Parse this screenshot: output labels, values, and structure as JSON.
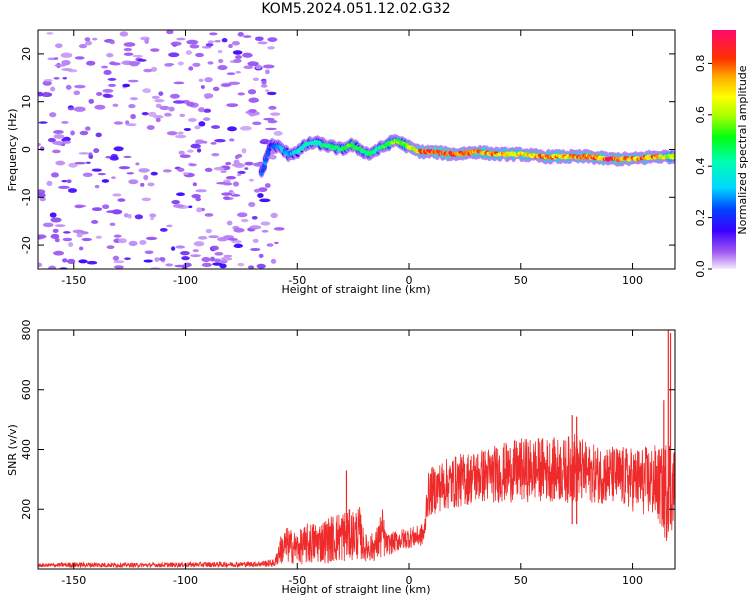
{
  "title": "KOM5.2024.051.12.02.G32",
  "chart_data": [
    {
      "type": "heatmap",
      "xlabel": "Height of straight line (km)",
      "ylabel": "Frequency (Hz)",
      "xlim": [
        -166,
        119
      ],
      "ylim": [
        -25,
        25
      ],
      "xticks": [
        -150,
        -100,
        -50,
        0,
        50,
        100
      ],
      "yticks": [
        -20,
        -10,
        0,
        10,
        20
      ],
      "colorbar": {
        "label": "Normalized spectral amplitude",
        "ticks": [
          0.0,
          0.2,
          0.4,
          0.6,
          0.8
        ],
        "range": [
          0.0,
          0.93
        ]
      },
      "ridge": {
        "x": [
          -66,
          -62,
          -58,
          -54,
          -50,
          -46,
          -42,
          -38,
          -34,
          -30,
          -26,
          -22,
          -18,
          -14,
          -10,
          -6,
          -2,
          2,
          6,
          10,
          20,
          30,
          40,
          50,
          60,
          70,
          80,
          90,
          100,
          110,
          119
        ],
        "freq": [
          -5,
          1,
          0.5,
          -1,
          -0.5,
          1,
          1.5,
          1,
          0.5,
          0,
          1,
          0,
          -1,
          0,
          1,
          2,
          1,
          0,
          -0.5,
          -0.5,
          -1,
          -0.5,
          -1,
          -1,
          -1.5,
          -1.5,
          -1.5,
          -2,
          -2,
          -1.5,
          -1.5
        ],
        "amp": [
          0.3,
          0.2,
          0.35,
          0.3,
          0.35,
          0.45,
          0.4,
          0.45,
          0.5,
          0.45,
          0.55,
          0.5,
          0.45,
          0.5,
          0.55,
          0.6,
          0.55,
          0.7,
          0.8,
          0.9,
          0.9,
          0.8,
          0.75,
          0.7,
          0.8,
          0.75,
          0.8,
          0.85,
          0.8,
          0.75,
          0.6
        ]
      },
      "noise_region_x": [
        -166,
        -64
      ]
    },
    {
      "type": "line",
      "xlabel": "Height of straight line (km)",
      "ylabel": "SNR (v/v)",
      "xlim": [
        -166,
        119
      ],
      "ylim": [
        0,
        800
      ],
      "xticks": [
        -150,
        -100,
        -50,
        0,
        50,
        100
      ],
      "yticks": [
        200,
        400,
        600,
        800
      ],
      "color": "#ee2a2a",
      "series": [
        {
          "x": [
            -166,
            -150,
            -120,
            -90,
            -70,
            -60,
            -58,
            -55,
            -50,
            -45,
            -40,
            -35,
            -30,
            -25,
            -22,
            -20,
            -15,
            -12,
            -10,
            -5,
            0,
            5,
            7,
            8,
            10,
            15,
            20,
            25,
            30,
            40,
            50,
            60,
            70,
            74,
            80,
            90,
            100,
            110,
            113,
            115,
            116,
            117,
            119
          ],
          "mean": [
            12,
            14,
            13,
            15,
            16,
            20,
            60,
            80,
            70,
            85,
            90,
            100,
            110,
            115,
            120,
            70,
            75,
            120,
            80,
            95,
            105,
            110,
            120,
            240,
            260,
            280,
            290,
            300,
            310,
            320,
            330,
            335,
            330,
            340,
            320,
            315,
            300,
            290,
            270,
            260,
            300,
            280,
            270
          ],
          "amp": [
            6,
            10,
            8,
            10,
            10,
            15,
            50,
            70,
            60,
            80,
            80,
            90,
            100,
            95,
            100,
            50,
            55,
            100,
            40,
            40,
            40,
            40,
            50,
            80,
            90,
            95,
            100,
            100,
            100,
            110,
            120,
            120,
            120,
            140,
            110,
            110,
            120,
            140,
            150,
            200,
            200,
            180,
            160
          ]
        }
      ],
      "spikes": [
        {
          "x": -28,
          "y": 330
        },
        {
          "x": 73,
          "y": 515
        },
        {
          "x": 75,
          "y": 510
        },
        {
          "x": 114,
          "y": 565
        },
        {
          "x": 116,
          "y": 800
        },
        {
          "x": 117,
          "y": 790
        }
      ]
    }
  ]
}
